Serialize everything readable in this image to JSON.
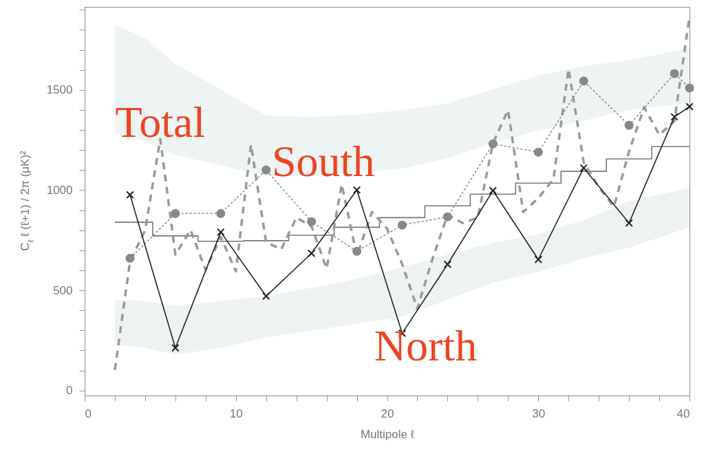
{
  "chart_data": {
    "type": "line",
    "xlabel": "Multipole ℓ",
    "ylabel": "C$_{ℓ}$ ℓ (ℓ+1) / 2π   (μK)²",
    "xlim": [
      0,
      40
    ],
    "ylim": [
      -25,
      1915
    ],
    "xticks": [
      0,
      {
        "value": 2,
        "label": null
      },
      {
        "value": 4,
        "label": null
      },
      {
        "value": 6,
        "label": null
      },
      {
        "value": 8,
        "label": null
      },
      10,
      {
        "value": 12,
        "label": null
      },
      {
        "value": 14,
        "label": null
      },
      {
        "value": 16,
        "label": null
      },
      {
        "value": 18,
        "label": null
      },
      20,
      {
        "value": 22,
        "label": null
      },
      {
        "value": 24,
        "label": null
      },
      {
        "value": 26,
        "label": null
      },
      {
        "value": 28,
        "label": null
      },
      30,
      {
        "value": 32,
        "label": null
      },
      {
        "value": 34,
        "label": null
      },
      {
        "value": 36,
        "label": null
      },
      {
        "value": 38,
        "label": null
      },
      40
    ],
    "yticks": [
      0,
      {
        "value": 100,
        "label": null
      },
      {
        "value": 200,
        "label": null
      },
      {
        "value": 300,
        "label": null
      },
      {
        "value": 400,
        "label": null
      },
      500,
      {
        "value": 600,
        "label": null
      },
      {
        "value": 700,
        "label": null
      },
      {
        "value": 800,
        "label": null
      },
      {
        "value": 900,
        "label": null
      },
      1000,
      {
        "value": 1100,
        "label": null
      },
      {
        "value": 1200,
        "label": null
      },
      {
        "value": 1300,
        "label": null
      },
      {
        "value": 1400,
        "label": null
      },
      1500,
      {
        "value": 1600,
        "label": null
      },
      {
        "value": 1700,
        "label": null
      },
      {
        "value": 1800,
        "label": null
      },
      {
        "value": 1900,
        "label": null
      }
    ],
    "series": [
      {
        "type": "area",
        "color": "#eef3f3",
        "x": [
          2,
          4,
          6,
          9,
          12,
          15,
          18,
          21,
          24,
          27,
          30,
          33,
          36,
          40
        ],
        "values": [
          null,
          null,
          null,
          null,
          null,
          null,
          null,
          null,
          null,
          null,
          null,
          null,
          null,
          null
        ],
        "lower": [
          1280,
          1245,
          1176,
          1125,
          1073,
          1073,
          1090,
          1108,
          1159,
          1235,
          1297,
          1348,
          1400,
          1434
        ],
        "upper": [
          1823,
          1761,
          1630,
          1503,
          1373,
          1366,
          1376,
          1400,
          1434,
          1503,
          1572,
          1620,
          1648,
          1710
        ]
      },
      {
        "type": "area",
        "color": "#edf2f2",
        "x": [
          2,
          4,
          6,
          9,
          12,
          15,
          18,
          21,
          24,
          27,
          30,
          33,
          36,
          40
        ],
        "values": [
          null,
          null,
          null,
          null,
          null,
          null,
          null,
          null,
          null,
          null,
          null,
          null,
          null,
          null
        ],
        "lower": [
          230,
          213,
          179,
          213,
          265,
          299,
          334,
          368,
          454,
          540,
          592,
          660,
          712,
          815
        ],
        "upper": [
          454,
          447,
          423,
          447,
          471,
          513,
          557,
          616,
          678,
          736,
          781,
          850,
          946,
          1011
        ]
      },
      {
        "type": "step",
        "color": "#777777",
        "x": [
          2,
          4.5,
          7.5,
          10.5,
          13.5,
          16.5,
          19.5,
          22.5,
          25.5,
          28.5,
          31.5,
          34.5,
          37.5,
          40
        ],
        "values": [
          840,
          772,
          745,
          748,
          775,
          815,
          863,
          922,
          980,
          1035,
          1094,
          1156,
          1218,
          1218
        ]
      },
      {
        "color": "#999999",
        "line_style": "dashed",
        "marker": "none",
        "x": [
          2,
          3,
          4,
          5,
          6,
          7,
          8,
          9,
          10,
          11,
          12,
          13,
          14,
          15,
          16,
          17,
          18,
          19,
          20,
          21,
          22,
          23,
          24,
          25,
          26,
          27,
          28,
          29,
          30,
          31,
          32,
          33,
          34,
          35,
          36,
          37,
          38,
          39,
          40
        ],
        "values": [
          103,
          645,
          800,
          1255,
          678,
          802,
          602,
          767,
          595,
          1228,
          740,
          705,
          863,
          820,
          609,
          1029,
          671,
          891,
          808,
          630,
          409,
          657,
          877,
          836,
          863,
          1235,
          1400,
          891,
          960,
          1056,
          1606,
          1139,
          1015,
          918,
          1194,
          1414,
          1276,
          1345,
          1868
        ]
      },
      {
        "color": "#888888",
        "line_style": "dotted",
        "marker": "circle",
        "x": [
          3,
          6,
          9,
          12,
          15,
          18,
          21,
          24,
          27,
          30,
          33,
          36,
          39,
          40
        ],
        "values": [
          660,
          884,
          884,
          1101,
          843,
          695,
          826,
          867,
          1231,
          1190,
          1545,
          1324,
          1582,
          1510
        ]
      },
      {
        "color": "#222222",
        "line_style": "solid",
        "marker": "cross",
        "x": [
          3,
          6,
          9,
          12,
          15,
          18,
          21,
          24,
          27,
          30,
          33,
          36,
          39,
          40
        ],
        "values": [
          977,
          213,
          791,
          471,
          685,
          1001,
          286,
          630,
          998,
          654,
          1111,
          836,
          1366,
          1417
        ]
      }
    ],
    "annotations": [
      {
        "text": "Total",
        "x": 5,
        "y": 1255
      },
      {
        "text": "South",
        "x": 12,
        "y": 1101
      },
      {
        "text": "North",
        "x": 21,
        "y": 286
      }
    ]
  }
}
